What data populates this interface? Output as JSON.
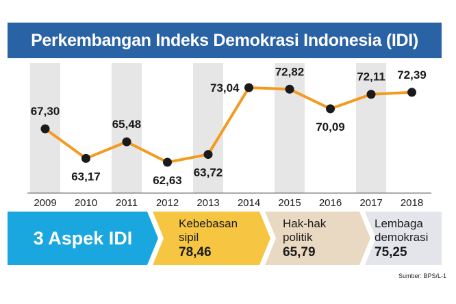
{
  "title": "Perkembangan Indeks Demokrasi Indonesia (IDI)",
  "chart_data": {
    "type": "line",
    "categories": [
      "2009",
      "2010",
      "2011",
      "2012",
      "2013",
      "2014",
      "2015",
      "2016",
      "2017",
      "2018"
    ],
    "values": [
      67.3,
      63.17,
      65.48,
      62.63,
      63.72,
      73.04,
      72.82,
      70.09,
      72.11,
      72.39
    ],
    "value_labels": [
      "67,30",
      "63,17",
      "65,48",
      "62,63",
      "63,72",
      "73,04",
      "72,82",
      "70,09",
      "72,11",
      "72,39"
    ],
    "ylim": [
      60,
      75
    ],
    "colors": {
      "line": "#f39a1f",
      "marker": "#1a1a1a",
      "band": "#e6e6e6"
    }
  },
  "aspects": {
    "title": "3 Aspek IDI",
    "items": [
      {
        "label": "Kebebasan\nsipil",
        "value": "78,46",
        "color": "#f6c542"
      },
      {
        "label": "Hak-hak\npolitik",
        "value": "65,79",
        "color": "#ead9c2"
      },
      {
        "label": "Lembaga\ndemokrasi",
        "value": "75,25",
        "color": "#e4e5ea"
      }
    ],
    "main_color": "#1aa6df"
  },
  "source": "Sumber: BPS/L-1"
}
